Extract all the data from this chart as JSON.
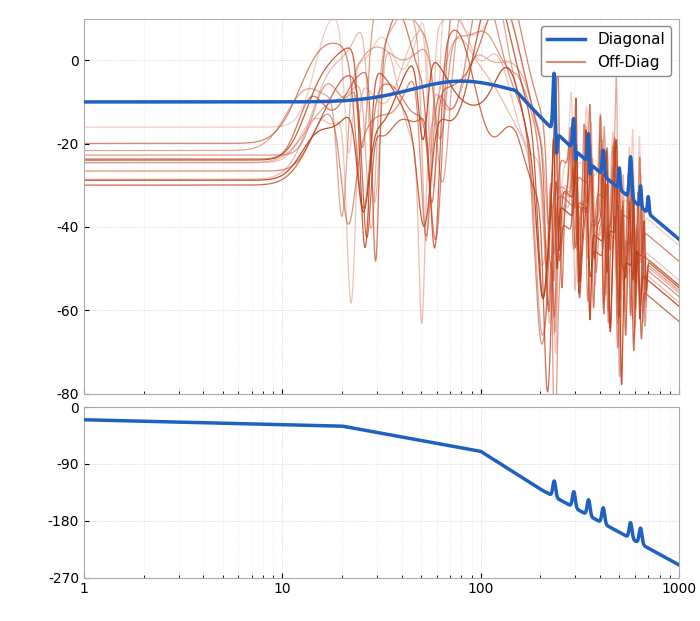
{
  "fig_width": 7.0,
  "fig_height": 6.21,
  "dpi": 100,
  "background_color": "#ffffff",
  "axes_facecolor": "#ffffff",
  "grid_color": "#cccccc",
  "text_color": "#000000",
  "diagonal_color": "#2060c0",
  "diagonal_linewidth": 2.5,
  "offdiag_linewidth": 0.9,
  "freq_min": 1,
  "freq_max": 1000,
  "mag_ylim": [
    -80,
    10
  ],
  "phase_ylim": [
    -270,
    0
  ],
  "legend_diagonal": "Diagonal",
  "legend_offdiag": "Off-Diag",
  "n_offdiag": 12
}
